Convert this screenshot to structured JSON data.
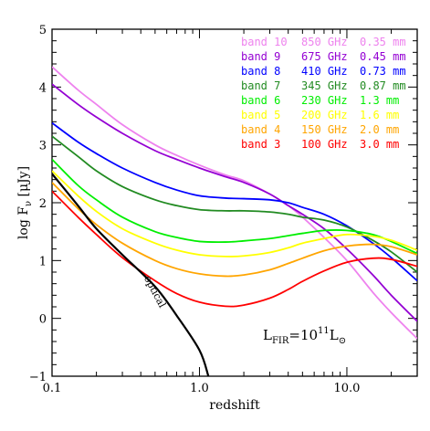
{
  "chart_data": {
    "type": "line",
    "xscale": "log",
    "xlim": [
      0.1,
      30
    ],
    "ylim": [
      -1,
      5
    ],
    "xlabel": "redshift",
    "ylabel": "log Fν [μJy]",
    "x_ticks": [
      0.1,
      1.0,
      10.0
    ],
    "x_tick_labels": [
      "0.1",
      "1.0",
      "10.0"
    ],
    "y_ticks": [
      -1,
      0,
      1,
      2,
      3,
      4,
      5
    ],
    "y_tick_labels": [
      "−1",
      "0",
      "1",
      "2",
      "3",
      "4",
      "5"
    ],
    "legend_position": "top-right",
    "annotation": {
      "base": "L",
      "sub": "FIR",
      "mid": "=10",
      "sup": "11",
      "end": "L",
      "endsub": "⊙"
    },
    "series": [
      {
        "name": "band 10",
        "freq": "850 GHz",
        "wave": "0.35 mm",
        "color": "#ee82ee",
        "x": [
          0.1,
          0.15,
          0.2,
          0.3,
          0.5,
          0.7,
          1.0,
          1.5,
          2.0,
          3.0,
          4.0,
          5.0,
          7.0,
          10.0,
          15.0,
          20.0,
          30.0
        ],
        "y": [
          4.35,
          3.95,
          3.7,
          3.35,
          3.0,
          2.82,
          2.65,
          2.48,
          2.38,
          2.15,
          1.95,
          1.75,
          1.4,
          1.0,
          0.45,
          0.1,
          -0.35
        ]
      },
      {
        "name": "band 9",
        "freq": "675 GHz",
        "wave": "0.45 mm",
        "color": "#9400d3",
        "x": [
          0.1,
          0.15,
          0.2,
          0.3,
          0.5,
          0.7,
          1.0,
          1.5,
          2.0,
          3.0,
          4.0,
          5.0,
          7.0,
          10.0,
          15.0,
          20.0,
          30.0
        ],
        "y": [
          4.05,
          3.7,
          3.48,
          3.2,
          2.9,
          2.75,
          2.6,
          2.45,
          2.35,
          2.15,
          1.95,
          1.8,
          1.55,
          1.2,
          0.75,
          0.4,
          -0.05
        ]
      },
      {
        "name": "band 8",
        "freq": "410 GHz",
        "wave": "0.73 mm",
        "color": "#0000ff",
        "x": [
          0.1,
          0.15,
          0.2,
          0.3,
          0.5,
          0.7,
          1.0,
          1.5,
          2.0,
          3.0,
          4.0,
          5.0,
          7.0,
          10.0,
          15.0,
          20.0,
          30.0
        ],
        "y": [
          3.38,
          3.05,
          2.85,
          2.6,
          2.35,
          2.22,
          2.12,
          2.08,
          2.07,
          2.05,
          2.0,
          1.92,
          1.8,
          1.6,
          1.3,
          1.05,
          0.65
        ]
      },
      {
        "name": "band 7",
        "freq": "345 GHz",
        "wave": "0.87 mm",
        "color": "#228b22",
        "x": [
          0.1,
          0.15,
          0.2,
          0.3,
          0.5,
          0.7,
          1.0,
          1.5,
          2.0,
          3.0,
          4.0,
          5.0,
          7.0,
          10.0,
          15.0,
          20.0,
          30.0
        ],
        "y": [
          3.15,
          2.8,
          2.55,
          2.28,
          2.05,
          1.95,
          1.88,
          1.86,
          1.86,
          1.84,
          1.8,
          1.75,
          1.7,
          1.58,
          1.35,
          1.15,
          0.8
        ]
      },
      {
        "name": "band 6",
        "freq": "230 GHz",
        "wave": "1.3 mm",
        "color": "#00ee00",
        "x": [
          0.1,
          0.15,
          0.2,
          0.3,
          0.5,
          0.7,
          1.0,
          1.5,
          2.0,
          3.0,
          4.0,
          5.0,
          7.0,
          10.0,
          15.0,
          20.0,
          30.0
        ],
        "y": [
          2.75,
          2.3,
          2.05,
          1.75,
          1.5,
          1.4,
          1.33,
          1.32,
          1.34,
          1.38,
          1.43,
          1.47,
          1.52,
          1.52,
          1.45,
          1.33,
          1.12
        ]
      },
      {
        "name": "band 5",
        "freq": "200 GHz",
        "wave": "1.6 mm",
        "color": "#ffff00",
        "x": [
          0.1,
          0.15,
          0.2,
          0.3,
          0.5,
          0.7,
          1.0,
          1.5,
          2.0,
          3.0,
          4.0,
          5.0,
          7.0,
          10.0,
          15.0,
          20.0,
          30.0
        ],
        "y": [
          2.55,
          2.12,
          1.85,
          1.55,
          1.3,
          1.18,
          1.1,
          1.07,
          1.08,
          1.14,
          1.22,
          1.3,
          1.38,
          1.45,
          1.42,
          1.35,
          1.18
        ]
      },
      {
        "name": "band 4",
        "freq": "150 GHz",
        "wave": "2.0 mm",
        "color": "#ffa500",
        "x": [
          0.1,
          0.15,
          0.2,
          0.3,
          0.5,
          0.7,
          1.0,
          1.5,
          2.0,
          3.0,
          4.0,
          5.0,
          7.0,
          10.0,
          15.0,
          20.0,
          30.0
        ],
        "y": [
          2.35,
          1.9,
          1.62,
          1.3,
          1.0,
          0.86,
          0.77,
          0.73,
          0.75,
          0.84,
          0.95,
          1.04,
          1.17,
          1.25,
          1.28,
          1.24,
          1.1
        ]
      },
      {
        "name": "band 3",
        "freq": "100 GHz",
        "wave": "3.0 mm",
        "color": "#ff0000",
        "x": [
          0.1,
          0.15,
          0.2,
          0.3,
          0.5,
          0.7,
          1.0,
          1.5,
          2.0,
          3.0,
          4.0,
          5.0,
          7.0,
          10.0,
          15.0,
          20.0,
          30.0
        ],
        "y": [
          2.2,
          1.75,
          1.45,
          1.05,
          0.65,
          0.43,
          0.28,
          0.21,
          0.23,
          0.35,
          0.5,
          0.64,
          0.82,
          0.97,
          1.04,
          1.02,
          0.9
        ]
      },
      {
        "name": "optical",
        "color": "#000000",
        "label": "optical",
        "label_rotation": 62,
        "x": [
          0.1,
          0.15,
          0.2,
          0.3,
          0.5,
          0.7,
          1.0,
          1.15
        ],
        "y": [
          2.5,
          1.95,
          1.55,
          1.1,
          0.55,
          0.05,
          -0.55,
          -1.0
        ]
      }
    ]
  }
}
